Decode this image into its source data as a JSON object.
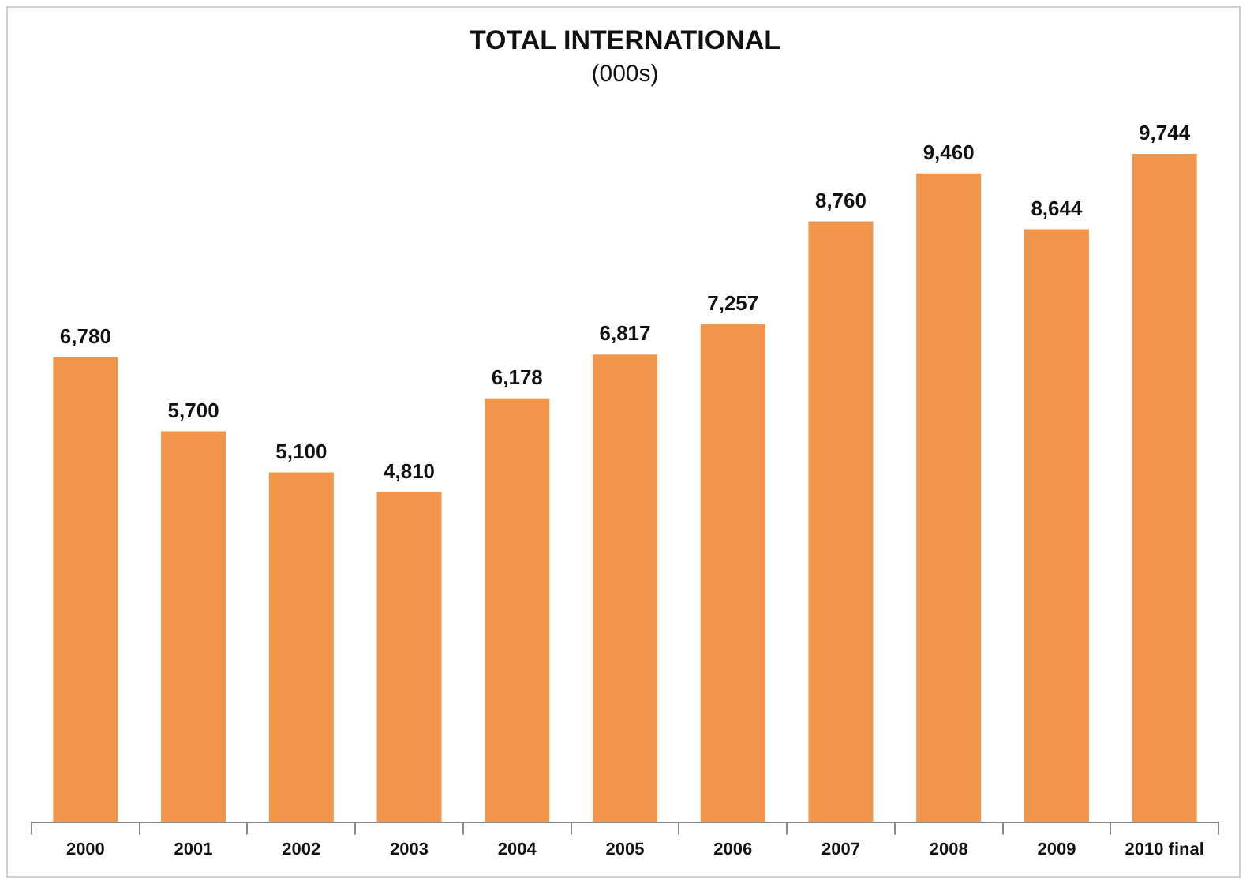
{
  "chart_data": {
    "type": "bar",
    "title": "TOTAL INTERNATIONAL",
    "subtitle": "(000s)",
    "categories": [
      "2000",
      "2001",
      "2002",
      "2003",
      "2004",
      "2005",
      "2006",
      "2007",
      "2008",
      "2009",
      "2010 final"
    ],
    "values": [
      6780,
      5700,
      5100,
      4810,
      6178,
      6817,
      7257,
      8760,
      9460,
      8644,
      9744
    ],
    "value_labels": [
      "6,780",
      "5,700",
      "5,100",
      "4,810",
      "6,178",
      "6,817",
      "7,257",
      "8,760",
      "9,460",
      "8,644",
      "9,744"
    ],
    "color": "#f0954a",
    "grid": false,
    "legend": false
  }
}
